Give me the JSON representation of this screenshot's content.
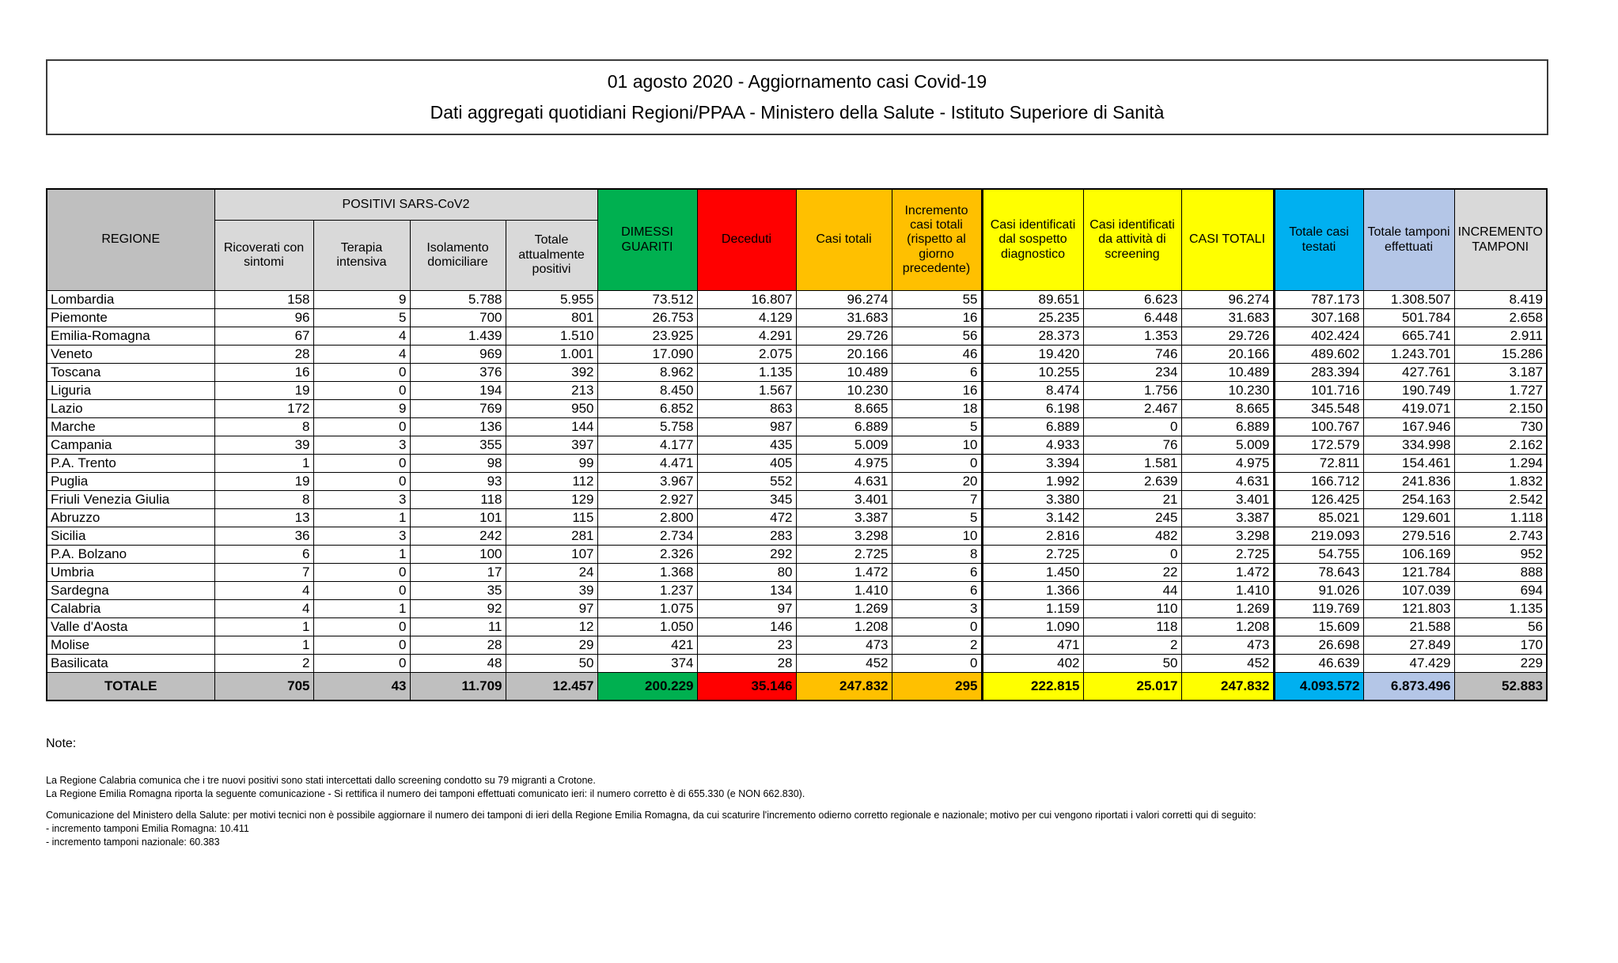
{
  "header": {
    "title_line1": "01 agosto 2020 - Aggiornamento casi Covid-19",
    "title_line2": "Dati aggregati quotidiani Regioni/PPAA - Ministero della Salute - Istituto Superiore di Sanità"
  },
  "table": {
    "region_header": "REGIONE",
    "group_header": "POSITIVI SARS-CoV2",
    "region_header_bg": "#BFBFBF",
    "subheader_bg": "#D9D9D9",
    "columns": [
      {
        "label": "Ricoverati con sintomi",
        "group": "positivi",
        "header_bg": "#D9D9D9",
        "total_bg": "#BFBFBF"
      },
      {
        "label": "Terapia intensiva",
        "group": "positivi",
        "header_bg": "#D9D9D9",
        "total_bg": "#BFBFBF"
      },
      {
        "label": "Isolamento domiciliare",
        "group": "positivi",
        "header_bg": "#D9D9D9",
        "total_bg": "#BFBFBF"
      },
      {
        "label": "Totale attualmente positivi",
        "group": "positivi",
        "header_bg": "#D9D9D9",
        "total_bg": "#BFBFBF"
      },
      {
        "label": "DIMESSI GUARITI",
        "group": null,
        "header_bg": "#00B050",
        "total_bg": "#00B050"
      },
      {
        "label": "Deceduti",
        "group": null,
        "header_bg": "#FF0000",
        "total_bg": "#FF0000"
      },
      {
        "label": "Casi totali",
        "group": null,
        "header_bg": "#FFC000",
        "total_bg": "#FFC000"
      },
      {
        "label": "Incremento casi totali (rispetto al giorno precedente)",
        "group": null,
        "header_bg": "#FFC000",
        "total_bg": "#FFC000"
      },
      {
        "label": "Casi identificati dal sospetto diagnostico",
        "group": null,
        "header_bg": "#FFFF00",
        "total_bg": "#FFFF00",
        "thick_left": true
      },
      {
        "label": "Casi identificati da attività di screening",
        "group": null,
        "header_bg": "#FFFF00",
        "total_bg": "#FFFF00"
      },
      {
        "label": "CASI TOTALI",
        "group": null,
        "header_bg": "#FFFF00",
        "total_bg": "#FFFF00"
      },
      {
        "label": "Totale casi testati",
        "group": null,
        "header_bg": "#00B0F0",
        "total_bg": "#00B0F0",
        "thick_left": true
      },
      {
        "label": "Totale tamponi effettuati",
        "group": null,
        "header_bg": "#B4C6E7",
        "total_bg": "#B4C6E7"
      },
      {
        "label": "INCREMENTO TAMPONI",
        "group": null,
        "header_bg": "#D9D9D9",
        "total_bg": "#BFBFBF"
      }
    ],
    "rows": [
      {
        "region": "Lombardia",
        "values": [
          "158",
          "9",
          "5.788",
          "5.955",
          "73.512",
          "16.807",
          "96.274",
          "55",
          "89.651",
          "6.623",
          "96.274",
          "787.173",
          "1.308.507",
          "8.419"
        ]
      },
      {
        "region": "Piemonte",
        "values": [
          "96",
          "5",
          "700",
          "801",
          "26.753",
          "4.129",
          "31.683",
          "16",
          "25.235",
          "6.448",
          "31.683",
          "307.168",
          "501.784",
          "2.658"
        ]
      },
      {
        "region": "Emilia-Romagna",
        "values": [
          "67",
          "4",
          "1.439",
          "1.510",
          "23.925",
          "4.291",
          "29.726",
          "56",
          "28.373",
          "1.353",
          "29.726",
          "402.424",
          "665.741",
          "2.911"
        ]
      },
      {
        "region": "Veneto",
        "values": [
          "28",
          "4",
          "969",
          "1.001",
          "17.090",
          "2.075",
          "20.166",
          "46",
          "19.420",
          "746",
          "20.166",
          "489.602",
          "1.243.701",
          "15.286"
        ]
      },
      {
        "region": "Toscana",
        "values": [
          "16",
          "0",
          "376",
          "392",
          "8.962",
          "1.135",
          "10.489",
          "6",
          "10.255",
          "234",
          "10.489",
          "283.394",
          "427.761",
          "3.187"
        ]
      },
      {
        "region": "Liguria",
        "values": [
          "19",
          "0",
          "194",
          "213",
          "8.450",
          "1.567",
          "10.230",
          "16",
          "8.474",
          "1.756",
          "10.230",
          "101.716",
          "190.749",
          "1.727"
        ]
      },
      {
        "region": "Lazio",
        "values": [
          "172",
          "9",
          "769",
          "950",
          "6.852",
          "863",
          "8.665",
          "18",
          "6.198",
          "2.467",
          "8.665",
          "345.548",
          "419.071",
          "2.150"
        ]
      },
      {
        "region": "Marche",
        "values": [
          "8",
          "0",
          "136",
          "144",
          "5.758",
          "987",
          "6.889",
          "5",
          "6.889",
          "0",
          "6.889",
          "100.767",
          "167.946",
          "730"
        ]
      },
      {
        "region": "Campania",
        "values": [
          "39",
          "3",
          "355",
          "397",
          "4.177",
          "435",
          "5.009",
          "10",
          "4.933",
          "76",
          "5.009",
          "172.579",
          "334.998",
          "2.162"
        ]
      },
      {
        "region": "P.A. Trento",
        "values": [
          "1",
          "0",
          "98",
          "99",
          "4.471",
          "405",
          "4.975",
          "0",
          "3.394",
          "1.581",
          "4.975",
          "72.811",
          "154.461",
          "1.294"
        ]
      },
      {
        "region": "Puglia",
        "values": [
          "19",
          "0",
          "93",
          "112",
          "3.967",
          "552",
          "4.631",
          "20",
          "1.992",
          "2.639",
          "4.631",
          "166.712",
          "241.836",
          "1.832"
        ]
      },
      {
        "region": "Friuli Venezia Giulia",
        "values": [
          "8",
          "3",
          "118",
          "129",
          "2.927",
          "345",
          "3.401",
          "7",
          "3.380",
          "21",
          "3.401",
          "126.425",
          "254.163",
          "2.542"
        ]
      },
      {
        "region": "Abruzzo",
        "values": [
          "13",
          "1",
          "101",
          "115",
          "2.800",
          "472",
          "3.387",
          "5",
          "3.142",
          "245",
          "3.387",
          "85.021",
          "129.601",
          "1.118"
        ]
      },
      {
        "region": "Sicilia",
        "values": [
          "36",
          "3",
          "242",
          "281",
          "2.734",
          "283",
          "3.298",
          "10",
          "2.816",
          "482",
          "3.298",
          "219.093",
          "279.516",
          "2.743"
        ]
      },
      {
        "region": "P.A. Bolzano",
        "values": [
          "6",
          "1",
          "100",
          "107",
          "2.326",
          "292",
          "2.725",
          "8",
          "2.725",
          "0",
          "2.725",
          "54.755",
          "106.169",
          "952"
        ]
      },
      {
        "region": "Umbria",
        "values": [
          "7",
          "0",
          "17",
          "24",
          "1.368",
          "80",
          "1.472",
          "6",
          "1.450",
          "22",
          "1.472",
          "78.643",
          "121.784",
          "888"
        ]
      },
      {
        "region": "Sardegna",
        "values": [
          "4",
          "0",
          "35",
          "39",
          "1.237",
          "134",
          "1.410",
          "6",
          "1.366",
          "44",
          "1.410",
          "91.026",
          "107.039",
          "694"
        ]
      },
      {
        "region": "Calabria",
        "values": [
          "4",
          "1",
          "92",
          "97",
          "1.075",
          "97",
          "1.269",
          "3",
          "1.159",
          "110",
          "1.269",
          "119.769",
          "121.803",
          "1.135"
        ]
      },
      {
        "region": "Valle d'Aosta",
        "values": [
          "1",
          "0",
          "11",
          "12",
          "1.050",
          "146",
          "1.208",
          "0",
          "1.090",
          "118",
          "1.208",
          "15.609",
          "21.588",
          "56"
        ]
      },
      {
        "region": "Molise",
        "values": [
          "1",
          "0",
          "28",
          "29",
          "421",
          "23",
          "473",
          "2",
          "471",
          "2",
          "473",
          "26.698",
          "27.849",
          "170"
        ]
      },
      {
        "region": "Basilicata",
        "values": [
          "2",
          "0",
          "48",
          "50",
          "374",
          "28",
          "452",
          "0",
          "402",
          "50",
          "452",
          "46.639",
          "47.429",
          "229"
        ]
      }
    ],
    "total": {
      "label": "TOTALE",
      "values": [
        "705",
        "43",
        "11.709",
        "12.457",
        "200.229",
        "35.146",
        "247.832",
        "295",
        "222.815",
        "25.017",
        "247.832",
        "4.093.572",
        "6.873.496",
        "52.883"
      ]
    }
  },
  "notes": {
    "heading": "Note:",
    "calabria": "La Regione Calabria comunica che i tre nuovi positivi sono stati intercettati dallo screening condotto su 79 migranti a Crotone.",
    "emilia": "La Regione Emilia Romagna riporta la seguente comunicazione - Si rettifica il numero dei tamponi effettuati comunicato ieri: il numero corretto è di 655.330 (e NON 662.830).",
    "ministero": "Comunicazione del Ministero della Salute: per motivi tecnici non è possibile aggiornare il numero dei tamponi di ieri della Regione Emilia Romagna, da cui scaturire l'incremento odierno corretto regionale e nazionale; motivo per cui vengono riportati i valori corretti qui di seguito:",
    "increment_emilia": "- incremento tamponi Emilia Romagna: 10.411",
    "increment_nazionale": "- incremento tamponi nazionale: 60.383"
  }
}
